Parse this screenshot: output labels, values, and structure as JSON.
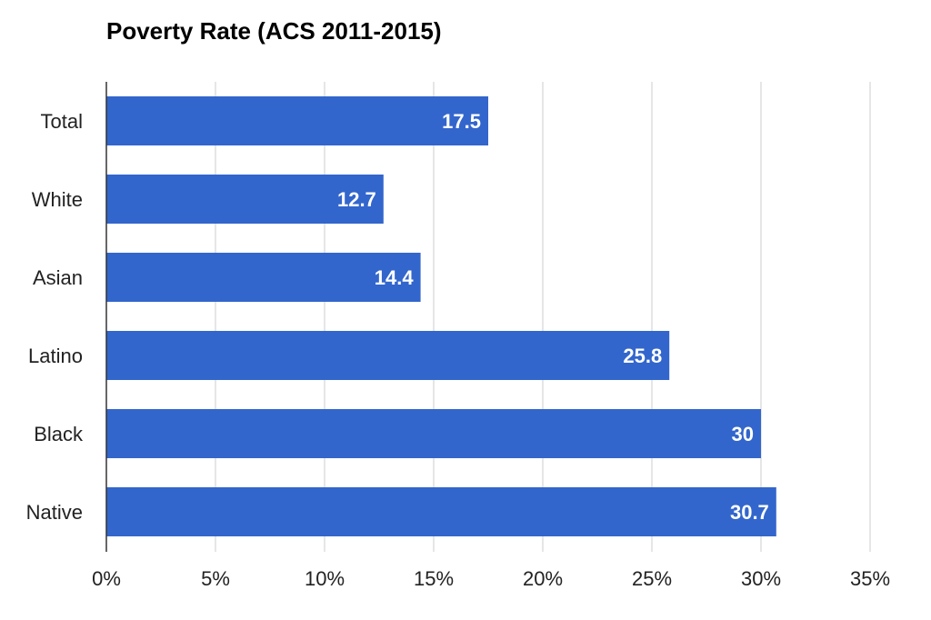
{
  "chart_data": {
    "type": "bar",
    "orientation": "horizontal",
    "title": "Poverty Rate (ACS 2011-2015)",
    "categories": [
      "Total",
      "White",
      "Asian",
      "Latino",
      "Black",
      "Native"
    ],
    "values": [
      17.5,
      12.7,
      14.4,
      25.8,
      30,
      30.7
    ],
    "data_labels": [
      "17.5",
      "12.7",
      "14.4",
      "25.8",
      "30",
      "30.7"
    ],
    "x_ticks": [
      0,
      5,
      10,
      15,
      20,
      25,
      30,
      35
    ],
    "x_tick_labels": [
      "0%",
      "5%",
      "10%",
      "15%",
      "20%",
      "25%",
      "30%",
      "35%"
    ],
    "xlim": [
      0,
      35
    ],
    "xlabel": "",
    "ylabel": "",
    "grid": "vertical",
    "bar_color": "#3366cc"
  }
}
